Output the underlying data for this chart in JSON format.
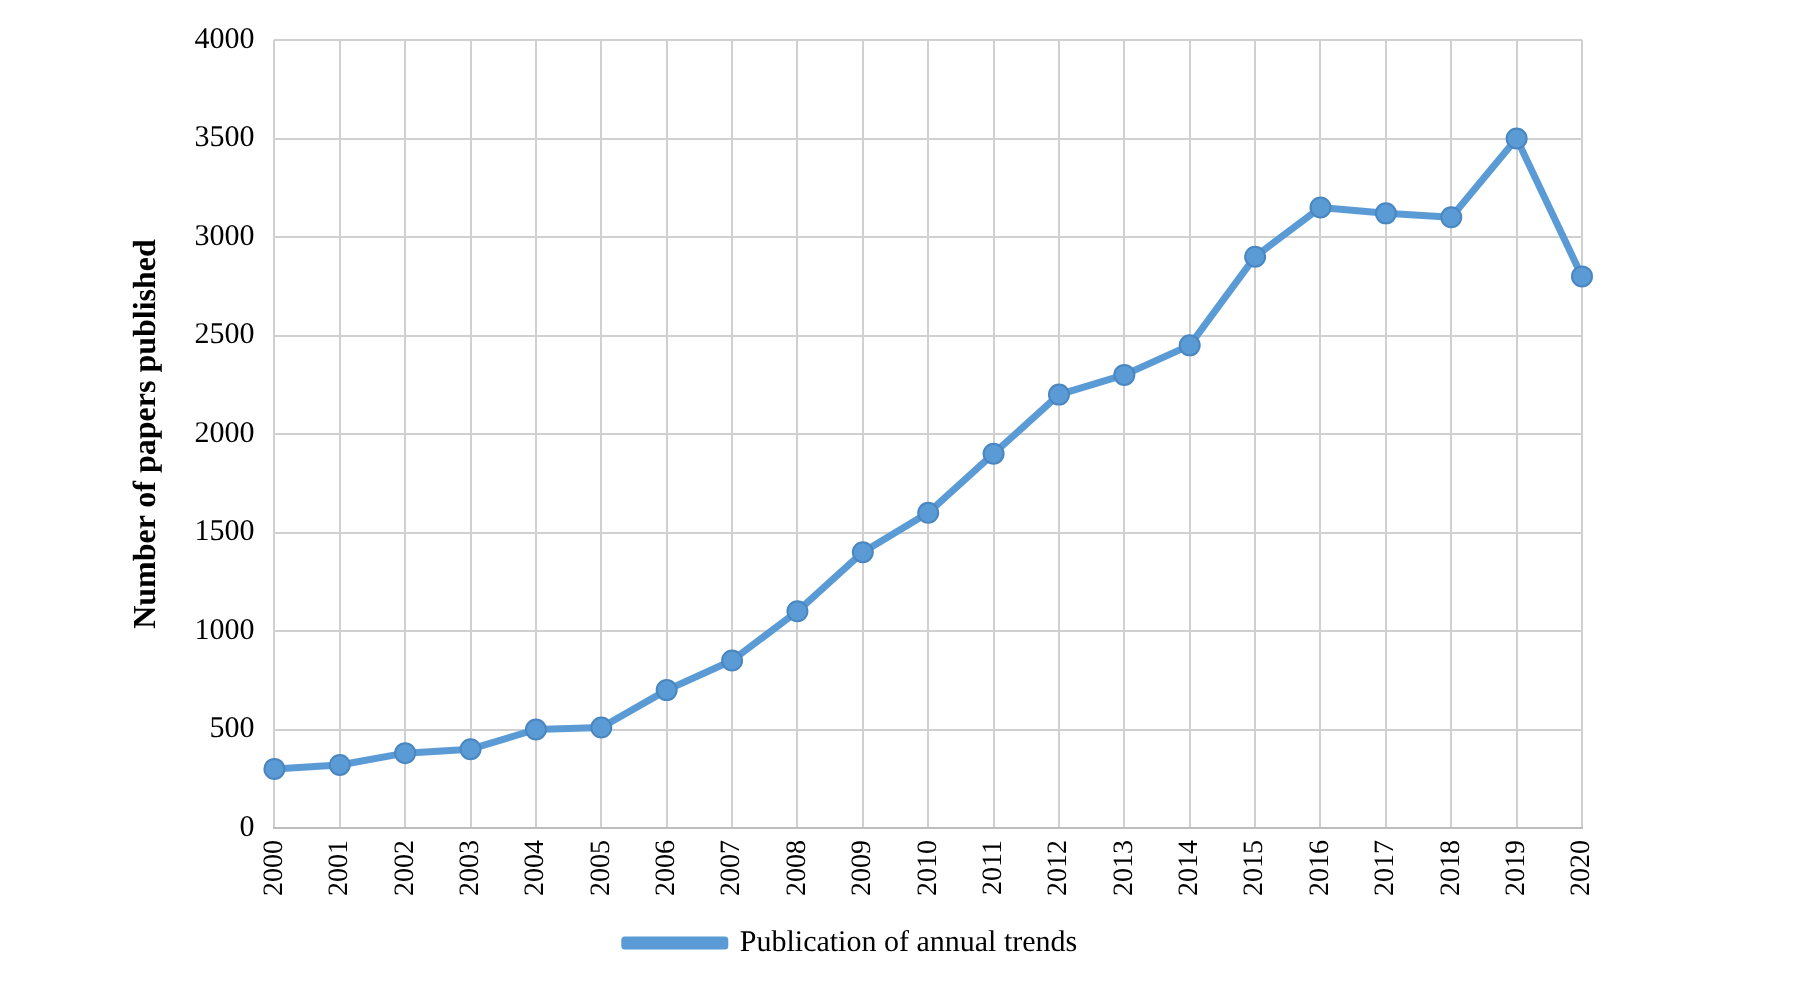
{
  "chart_data": {
    "type": "line",
    "ylabel": "Number of papers published",
    "categories": [
      "2000",
      "2001",
      "2002",
      "2003",
      "2004",
      "2005",
      "2006",
      "2007",
      "2008",
      "2009",
      "2010",
      "2011",
      "2012",
      "2013",
      "2014",
      "2015",
      "2016",
      "2017",
      "2018",
      "2019",
      "2020"
    ],
    "series": [
      {
        "name": "Publication of annual trends",
        "color": "#5b9bd5",
        "values": [
          300,
          320,
          380,
          400,
          500,
          510,
          700,
          850,
          1100,
          1400,
          1600,
          1900,
          2200,
          2300,
          2450,
          2900,
          3150,
          3120,
          3100,
          3500,
          2800
        ]
      }
    ],
    "ylim": [
      0,
      4000
    ],
    "yticks": [
      0,
      500,
      1000,
      1500,
      2000,
      2500,
      3000,
      3500,
      4000
    ],
    "grid": true,
    "legend": "bottom",
    "marker": "circle",
    "line_style": "solid"
  }
}
